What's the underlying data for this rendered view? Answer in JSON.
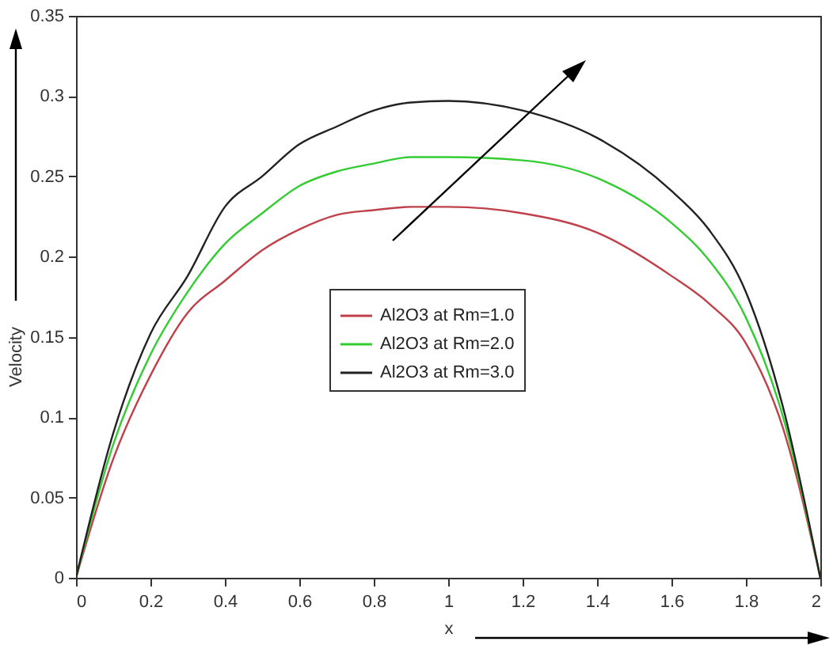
{
  "chart_data": {
    "type": "line",
    "xlabel": "x",
    "ylabel": "Velocity",
    "xlim": [
      0,
      2
    ],
    "ylim": [
      0,
      0.35
    ],
    "xticks": [
      0,
      0.2,
      0.4,
      0.6,
      0.8,
      1,
      1.2,
      1.4,
      1.6,
      1.8,
      2
    ],
    "yticks": [
      0,
      0.05,
      0.1,
      0.15,
      0.2,
      0.25,
      0.3,
      0.35
    ],
    "x": [
      0,
      0.1,
      0.2,
      0.3,
      0.4,
      0.5,
      0.6,
      0.7,
      0.8,
      0.9,
      1,
      1.2,
      1.4,
      1.6,
      1.7,
      1.8,
      1.9,
      2
    ],
    "series": [
      {
        "name": "Al2O3 at Rm=1.0",
        "color": "#c0404a",
        "values": [
          0,
          0.074,
          0.126,
          0.165,
          0.185,
          0.204,
          0.217,
          0.226,
          0.229,
          0.231,
          0.231,
          0.227,
          0.215,
          0.188,
          0.171,
          0.146,
          0.093,
          0
        ]
      },
      {
        "name": "Al2O3 at Rm=2.0",
        "color": "#33cc33",
        "values": [
          0,
          0.083,
          0.139,
          0.178,
          0.208,
          0.227,
          0.244,
          0.253,
          0.258,
          0.262,
          0.262,
          0.26,
          0.249,
          0.221,
          0.198,
          0.162,
          0.1,
          0
        ]
      },
      {
        "name": "Al2O3 at Rm=3.0",
        "color": "#222222",
        "values": [
          0,
          0.09,
          0.152,
          0.188,
          0.231,
          0.25,
          0.27,
          0.281,
          0.291,
          0.296,
          0.297,
          0.291,
          0.274,
          0.241,
          0.217,
          0.178,
          0.106,
          0
        ]
      }
    ],
    "legend": "center",
    "grid": false,
    "marker": "none",
    "line_style": "solid"
  }
}
